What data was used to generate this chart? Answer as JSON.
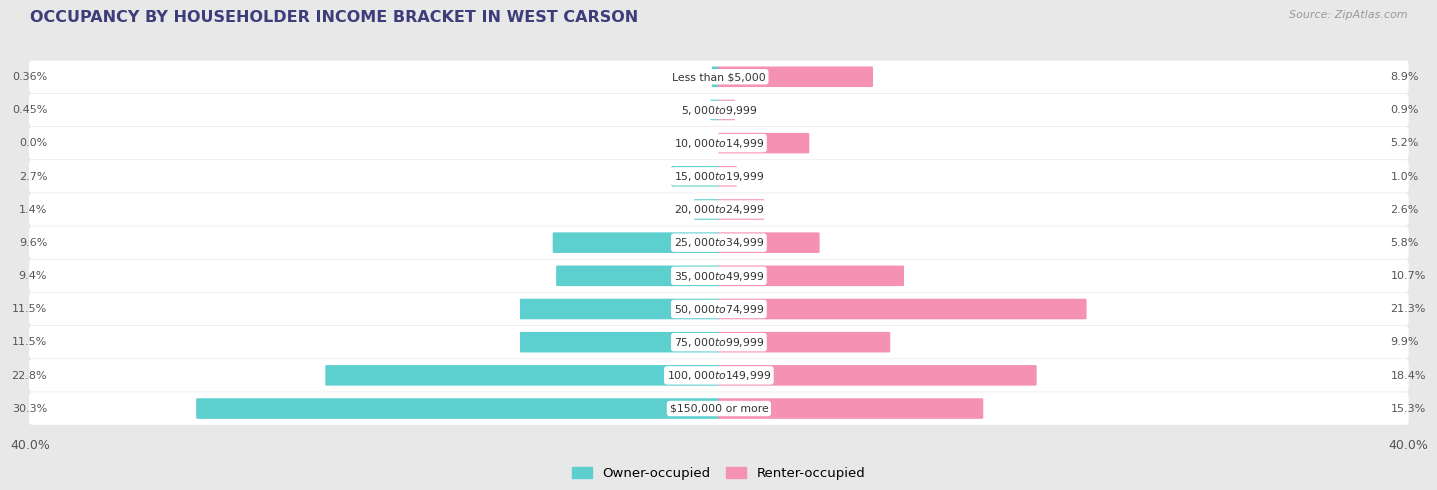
{
  "title": "OCCUPANCY BY HOUSEHOLDER INCOME BRACKET IN WEST CARSON",
  "source": "Source: ZipAtlas.com",
  "categories": [
    "Less than $5,000",
    "$5,000 to $9,999",
    "$10,000 to $14,999",
    "$15,000 to $19,999",
    "$20,000 to $24,999",
    "$25,000 to $34,999",
    "$35,000 to $49,999",
    "$50,000 to $74,999",
    "$75,000 to $99,999",
    "$100,000 to $149,999",
    "$150,000 or more"
  ],
  "owner_values": [
    0.36,
    0.45,
    0.0,
    2.7,
    1.4,
    9.6,
    9.4,
    11.5,
    11.5,
    22.8,
    30.3
  ],
  "renter_values": [
    8.9,
    0.9,
    5.2,
    1.0,
    2.6,
    5.8,
    10.7,
    21.3,
    9.9,
    18.4,
    15.3
  ],
  "owner_color": "#5ecfcf",
  "renter_color": "#f591b2",
  "background_color": "#e8e8e8",
  "bar_background_color": "#ffffff",
  "xlim": 40.0,
  "legend_owner": "Owner-occupied",
  "legend_renter": "Renter-occupied",
  "title_color": "#3d3d7a",
  "source_color": "#999999",
  "label_color": "#666666",
  "value_fontsize": 8.0,
  "cat_fontsize": 7.8,
  "title_fontsize": 11.5
}
